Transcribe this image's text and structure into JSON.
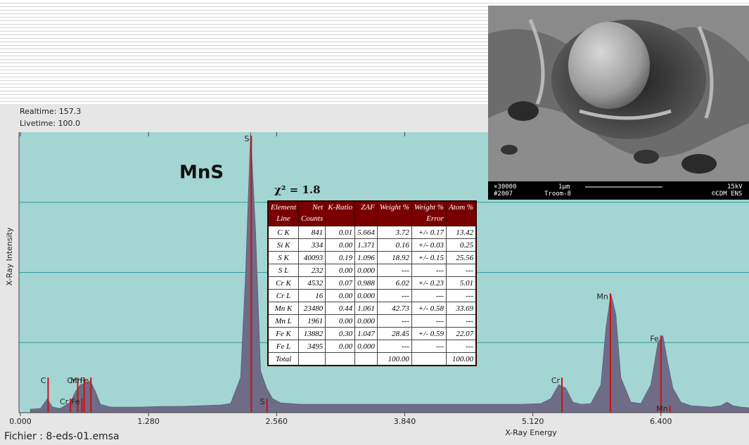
{
  "acquisition": {
    "realtime": "Realtime: 157.3",
    "livetime": "Livetime: 100.0"
  },
  "file_label": "Fichier : 8-eds-01.emsa",
  "fit_label": "χ² = 1.8",
  "chart_data": {
    "type": "area",
    "title": "MnS",
    "x_label": "X-Ray Energy",
    "y_label": "X-Ray Intensity",
    "color": "#6e6c86",
    "background": "#a3d5d2",
    "grid_color": "#2f9e9c",
    "xlim": [
      0,
      7.28
    ],
    "ylim": [
      0,
      4
    ],
    "xticks": [
      {
        "value": 0,
        "label": "0.000"
      },
      {
        "value": 1.28,
        "label": "1.280"
      },
      {
        "value": 2.56,
        "label": "2.560"
      },
      {
        "value": 3.84,
        "label": "3.840"
      },
      {
        "value": 5.12,
        "label": "5.120"
      },
      {
        "value": 6.4,
        "label": "6.400"
      }
    ],
    "ygrid": [
      1,
      2,
      3
    ],
    "x": [
      0.1,
      0.2,
      0.27,
      0.32,
      0.4,
      0.5,
      0.55,
      0.6,
      0.65,
      0.7,
      0.75,
      0.8,
      0.9,
      1.0,
      1.2,
      1.4,
      1.6,
      1.8,
      2.0,
      2.1,
      2.2,
      2.25,
      2.3,
      2.35,
      2.4,
      2.46,
      2.52,
      2.6,
      2.8,
      3.0,
      3.2,
      3.4,
      3.6,
      3.8,
      4.0,
      4.2,
      4.4,
      4.6,
      4.8,
      5.0,
      5.2,
      5.3,
      5.38,
      5.45,
      5.52,
      5.6,
      5.7,
      5.8,
      5.85,
      5.9,
      5.95,
      6.0,
      6.1,
      6.2,
      6.3,
      6.37,
      6.42,
      6.47,
      6.52,
      6.6,
      6.7,
      6.8,
      6.9,
      7.0,
      7.06,
      7.12,
      7.2,
      7.28
    ],
    "values": [
      0.05,
      0.06,
      0.2,
      0.08,
      0.06,
      0.15,
      0.3,
      0.4,
      0.42,
      0.45,
      0.3,
      0.12,
      0.08,
      0.08,
      0.08,
      0.09,
      0.09,
      0.1,
      0.11,
      0.13,
      0.5,
      2.0,
      4.0,
      2.6,
      0.6,
      0.35,
      0.2,
      0.14,
      0.12,
      0.12,
      0.12,
      0.12,
      0.12,
      0.12,
      0.12,
      0.12,
      0.12,
      0.12,
      0.12,
      0.12,
      0.13,
      0.2,
      0.4,
      0.35,
      0.15,
      0.12,
      0.13,
      0.4,
      1.2,
      1.7,
      1.4,
      0.5,
      0.15,
      0.13,
      0.4,
      1.0,
      1.1,
      0.7,
      0.35,
      0.15,
      0.1,
      0.09,
      0.08,
      0.1,
      0.15,
      0.1,
      0.08,
      0.07
    ],
    "element_lines": [
      {
        "label": "C",
        "energy": 0.277,
        "height": 0.5
      },
      {
        "label": "Cr",
        "energy": 0.573,
        "height": 0.5
      },
      {
        "label": "Mn",
        "energy": 0.637,
        "height": 0.5
      },
      {
        "label": "Fe",
        "energy": 0.705,
        "height": 0.5
      },
      {
        "label": "Cr",
        "energy": 0.5,
        "height": 0.2
      },
      {
        "label": "Fe",
        "energy": 0.615,
        "height": 0.2
      },
      {
        "label": "S",
        "energy": 2.307,
        "height": 3.95
      },
      {
        "label": "S",
        "energy": 2.464,
        "height": 0.2
      },
      {
        "label": "Cr",
        "energy": 5.411,
        "height": 0.5
      },
      {
        "label": "Mn",
        "energy": 5.895,
        "height": 1.7
      },
      {
        "label": "Fe",
        "energy": 6.4,
        "height": 1.1
      },
      {
        "label": "Mn",
        "energy": 6.49,
        "height": 0.1
      }
    ],
    "line_color": "#d01010"
  },
  "table": {
    "header": [
      [
        "Element",
        "Line"
      ],
      [
        "Net",
        "Counts"
      ],
      [
        "K-Ratio"
      ],
      [
        "ZAF"
      ],
      [
        "Weight %"
      ],
      [
        "Weight %",
        "Error"
      ],
      [
        "Atom %"
      ]
    ],
    "rows": [
      [
        "C K",
        "841",
        "0.01",
        "5.664",
        "3.72",
        "+/- 0.17",
        "13.42"
      ],
      [
        "Si K",
        "334",
        "0.00",
        "1.371",
        "0.16",
        "+/- 0.03",
        "0.25"
      ],
      [
        "S K",
        "40093",
        "0.19",
        "1.096",
        "18.92",
        "+/- 0.15",
        "25.56"
      ],
      [
        "S L",
        "232",
        "0.00",
        "0.000",
        "---",
        "---",
        "---"
      ],
      [
        "Cr K",
        "4532",
        "0.07",
        "0.988",
        "6.02",
        "+/- 0.23",
        "5.01"
      ],
      [
        "Cr L",
        "16",
        "0.00",
        "0.000",
        "---",
        "---",
        "---"
      ],
      [
        "Mn K",
        "23480",
        "0.44",
        "1.061",
        "42.73",
        "+/- 0.58",
        "33.69"
      ],
      [
        "Mn L",
        "1961",
        "0.00",
        "0.000",
        "---",
        "---",
        "---"
      ],
      [
        "Fe K",
        "13882",
        "0.30",
        "1.047",
        "28.45",
        "+/- 0.59",
        "22.07"
      ],
      [
        "Fe L",
        "3495",
        "0.00",
        "0.000",
        "---",
        "---",
        "---"
      ],
      [
        "Total",
        null,
        null,
        null,
        "100.00",
        null,
        "100.00"
      ]
    ]
  },
  "image": {
    "captions": [
      "×30000",
      "#2007",
      "1μm",
      "Troom-8",
      "15kV",
      "©CDM ENS"
    ]
  }
}
